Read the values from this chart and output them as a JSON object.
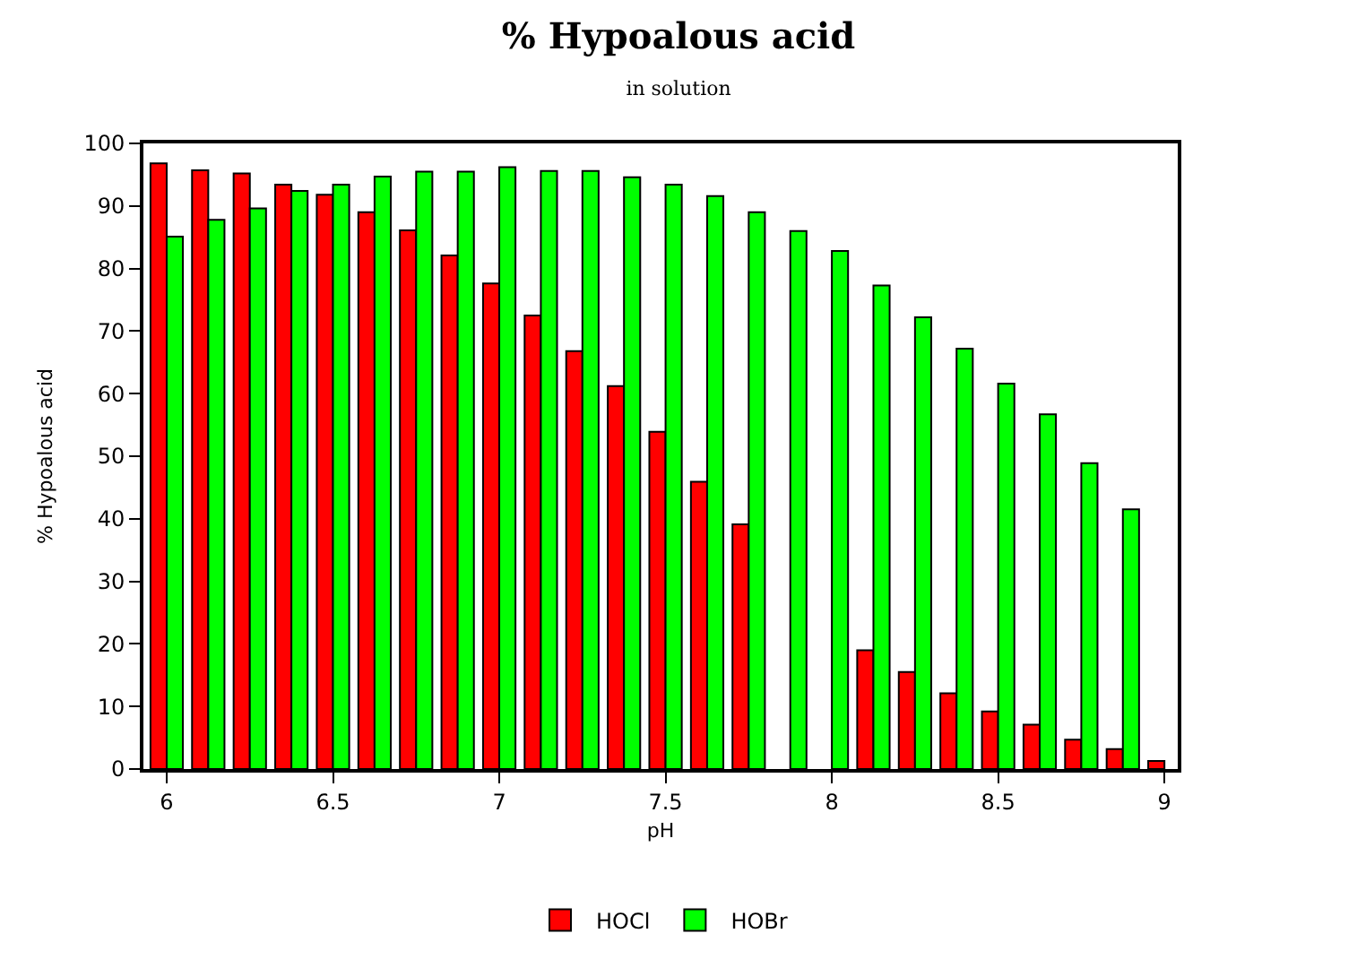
{
  "chart_data": {
    "type": "bar",
    "title": "% Hypoalous acid",
    "subtitle": "in solution",
    "xlabel": "pH",
    "ylabel": "% Hypoalous acid",
    "x": [
      6,
      6.125,
      6.25,
      6.375,
      6.5,
      6.625,
      6.75,
      6.875,
      7,
      7.125,
      7.25,
      7.375,
      7.5,
      7.625,
      7.75,
      7.875,
      8,
      8.125,
      8.25,
      8.375,
      8.5,
      8.625,
      8.75,
      8.875,
      9
    ],
    "series": [
      {
        "name": "HOCl",
        "color": "#ff0000",
        "values": [
          96.8,
          95.7,
          95.2,
          93.4,
          91.8,
          89.0,
          86.1,
          82.1,
          77.6,
          72.5,
          66.8,
          61.2,
          53.9,
          45.9,
          39.1,
          null,
          null,
          19.0,
          15.5,
          12.1,
          9.2,
          7.1,
          4.7,
          3.2,
          1.3
        ]
      },
      {
        "name": "HOBr",
        "color": "#00ff00",
        "values": [
          85.1,
          87.8,
          89.6,
          92.4,
          93.4,
          94.7,
          95.5,
          95.5,
          96.2,
          95.6,
          95.6,
          94.6,
          93.4,
          91.6,
          89.0,
          86.0,
          82.8,
          77.3,
          72.2,
          67.2,
          61.6,
          56.7,
          48.9,
          41.5,
          null
        ]
      }
    ],
    "xlim": [
      5.93,
      9.04
    ],
    "xticks": [
      6,
      6.5,
      7,
      7.5,
      8,
      8.5,
      9
    ],
    "ylim": [
      0,
      100
    ],
    "yticks": [
      0,
      10,
      20,
      30,
      40,
      50,
      60,
      70,
      80,
      90,
      100
    ],
    "legend": "bottom"
  }
}
